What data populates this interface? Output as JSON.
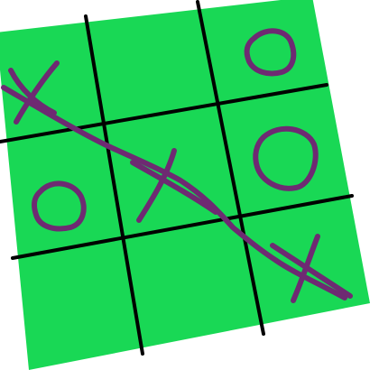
{
  "game": {
    "type": "tic-tac-toe",
    "board_color": "#19d855",
    "grid_color": "#000000",
    "mark_color": "#6e2a72",
    "board": [
      [
        "X",
        "",
        "O"
      ],
      [
        "O",
        "X",
        "O"
      ],
      [
        "",
        "",
        "X"
      ]
    ],
    "winner": "X",
    "winning_line": "diagonal-top-left-to-bottom-right"
  }
}
